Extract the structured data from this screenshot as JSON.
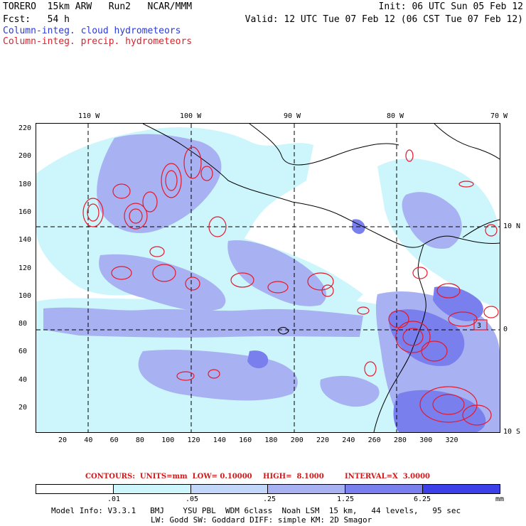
{
  "header": {
    "model": "TORERO  15km ARW   Run2   NCAR/MMM",
    "init": "Init: 06 UTC Sun 05 Feb 12",
    "fcst": "Fcst:   54 h",
    "valid": "Valid: 12 UTC Tue 07 Feb 12 (06 CST Tue 07 Feb 12)",
    "legend_cloud": "Column-integ. cloud hydrometeors",
    "legend_precip": "Column-integ. precip. hydrometeors"
  },
  "map": {
    "lon_labels": [
      "110 W",
      "100 W",
      "90 W",
      "80 W",
      "70 W"
    ],
    "lat_labels": [
      "10 N",
      "0",
      "10 S"
    ],
    "y_ticks": [
      "220",
      "200",
      "180",
      "160",
      "140",
      "120",
      "100",
      "80",
      "60",
      "40",
      "20"
    ],
    "x_ticks": [
      "20",
      "40",
      "60",
      "80",
      "100",
      "120",
      "140",
      "160",
      "180",
      "200",
      "220",
      "240",
      "260",
      "280",
      "300",
      "320"
    ],
    "highlight_label": "3",
    "colors": {
      "cloud_light": "#cdf6fc",
      "cloud_mid": "#a8b2f2",
      "cloud_dark": "#7a7fee",
      "precip_contour": "#e8182a",
      "coast": "#000000"
    }
  },
  "contours_line": {
    "label": "CONTOURS:  UNITS=mm  LOW= 0.10000",
    "high": "HIGH=  8.1000",
    "interval": "INTERVAL=X  3.0000"
  },
  "colorbar": {
    "colors": [
      "#ffffff",
      "#cdf6fc",
      "#c1d6f8",
      "#a8b2f2",
      "#7a7fee",
      "#3d3fe8"
    ],
    "labels": [
      ".01",
      ".05",
      ".25",
      "1.25",
      "6.25"
    ],
    "units": "mm"
  },
  "footer": {
    "line1": "Model Info: V3.3.1   BMJ    YSU PBL  WDM 6class  Noah LSM  15 km,   44 levels,   95 sec",
    "line2": "LW: Godd SW: Goddard DIFF: simple KM: 2D Smagor"
  }
}
